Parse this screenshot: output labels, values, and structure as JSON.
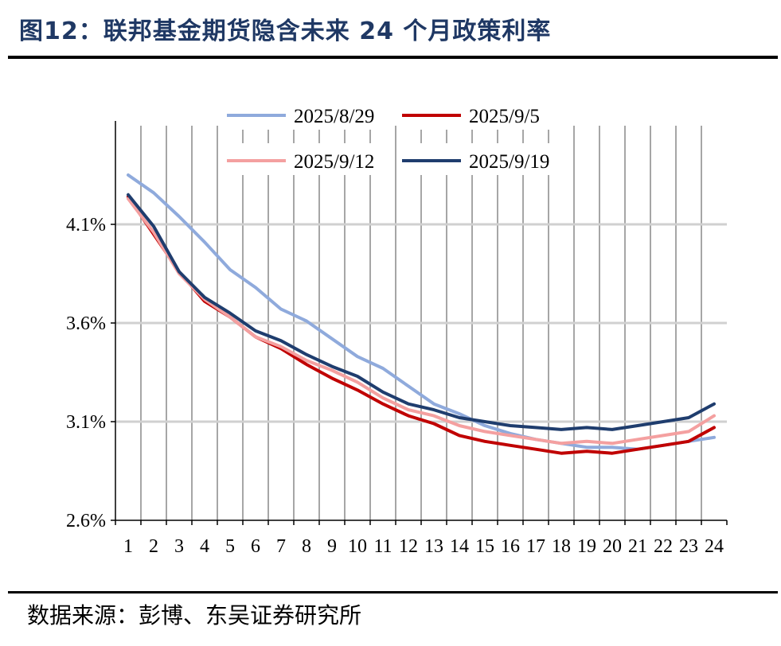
{
  "header": {
    "title": "图12：联邦基金期货隐含未来 24 个月政策利率"
  },
  "footer": {
    "source": "数据来源：彭博、东吴证券研究所"
  },
  "chart_data": {
    "type": "line",
    "title": "图12：联邦基金期货隐含未来 24 个月政策利率",
    "xlabel": "",
    "ylabel": "",
    "categories": [
      "1",
      "2",
      "3",
      "4",
      "5",
      "6",
      "7",
      "8",
      "9",
      "10",
      "11",
      "12",
      "13",
      "14",
      "15",
      "16",
      "17",
      "18",
      "19",
      "20",
      "21",
      "22",
      "23",
      "24"
    ],
    "ylim": [
      2.6,
      4.6
    ],
    "yticks": [
      2.6,
      3.1,
      3.6,
      4.1
    ],
    "ytick_labels": [
      "2.6%",
      "3.1%",
      "3.6%",
      "4.1%"
    ],
    "grid": "horizontal and vertical",
    "legend_position": "top",
    "series": [
      {
        "name": "2025/8/29",
        "color": "#8faadc",
        "values": [
          4.35,
          4.26,
          4.14,
          4.01,
          3.87,
          3.78,
          3.67,
          3.61,
          3.52,
          3.43,
          3.37,
          3.28,
          3.19,
          3.14,
          3.08,
          3.04,
          3.01,
          2.99,
          2.97,
          2.97,
          2.96,
          2.98,
          3.0,
          3.02
        ]
      },
      {
        "name": "2025/9/5",
        "color": "#c00000",
        "values": [
          4.24,
          4.05,
          3.86,
          3.71,
          3.63,
          3.53,
          3.47,
          3.39,
          3.32,
          3.26,
          3.19,
          3.13,
          3.09,
          3.03,
          3.0,
          2.98,
          2.96,
          2.94,
          2.95,
          2.94,
          2.96,
          2.98,
          3.0,
          3.07
        ]
      },
      {
        "name": "2025/9/12",
        "color": "#f4a0a0",
        "values": [
          4.23,
          4.06,
          3.85,
          3.72,
          3.63,
          3.53,
          3.48,
          3.41,
          3.36,
          3.3,
          3.22,
          3.16,
          3.13,
          3.08,
          3.05,
          3.03,
          3.01,
          2.99,
          3.0,
          2.99,
          3.01,
          3.03,
          3.05,
          3.13
        ]
      },
      {
        "name": "2025/9/19",
        "color": "#1f3d6e",
        "values": [
          4.25,
          4.09,
          3.86,
          3.73,
          3.65,
          3.56,
          3.51,
          3.44,
          3.38,
          3.33,
          3.25,
          3.19,
          3.16,
          3.12,
          3.1,
          3.08,
          3.07,
          3.06,
          3.07,
          3.06,
          3.08,
          3.1,
          3.12,
          3.19
        ]
      }
    ]
  }
}
